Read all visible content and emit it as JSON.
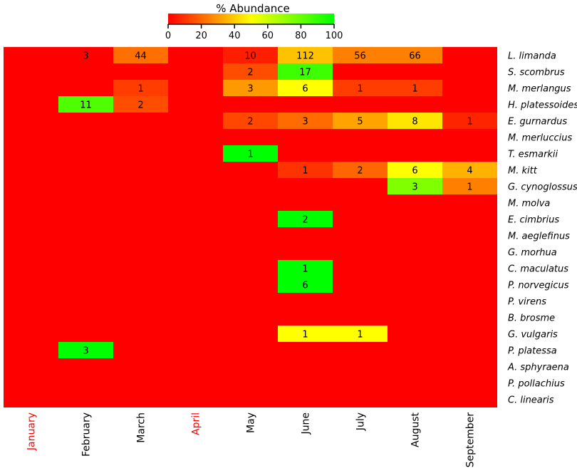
{
  "chart_data": {
    "type": "heatmap",
    "title": "% Abundance",
    "colorbar": {
      "range": [
        0,
        100
      ],
      "ticks": [
        0,
        20,
        40,
        60,
        80,
        100
      ],
      "colors": [
        "#ff0000",
        "#ffff00",
        "#00ff00"
      ]
    },
    "months": [
      "January",
      "February",
      "March",
      "April",
      "May",
      "June",
      "July",
      "August",
      "September"
    ],
    "highlighted_months": [
      "January",
      "April"
    ],
    "species": [
      "L. limanda",
      "S. scombrus",
      "M. merlangus",
      "H. platessoides",
      "E. gurnardus",
      "M. merluccius",
      "T. esmarkii",
      "M. kitt",
      "G. cynoglossus",
      "M. molva",
      "E. cimbrius",
      "M. aeglefinus",
      "G. morhua",
      "C. maculatus",
      "P. norvegicus",
      "P. virens",
      "B. brosme",
      "G. vulgaris",
      "P. platessa",
      "A. sphyraena",
      "P. pollachius",
      "C. linearis"
    ],
    "cells": [
      {
        "species": "L. limanda",
        "month": "February",
        "label": "3",
        "pct": 0
      },
      {
        "species": "L. limanda",
        "month": "March",
        "label": "44",
        "pct": 22
      },
      {
        "species": "L. limanda",
        "month": "May",
        "label": "10",
        "pct": 6
      },
      {
        "species": "L. limanda",
        "month": "June",
        "label": "112",
        "pct": 38
      },
      {
        "species": "L. limanda",
        "month": "July",
        "label": "56",
        "pct": 25
      },
      {
        "species": "L. limanda",
        "month": "August",
        "label": "66",
        "pct": 25
      },
      {
        "species": "S. scombrus",
        "month": "May",
        "label": "2",
        "pct": 15
      },
      {
        "species": "S. scombrus",
        "month": "June",
        "label": "17",
        "pct": 88
      },
      {
        "species": "M. merlangus",
        "month": "March",
        "label": "1",
        "pct": 12
      },
      {
        "species": "M. merlangus",
        "month": "May",
        "label": "3",
        "pct": 30
      },
      {
        "species": "M. merlangus",
        "month": "June",
        "label": "6",
        "pct": 50
      },
      {
        "species": "M. merlangus",
        "month": "July",
        "label": "1",
        "pct": 12
      },
      {
        "species": "M. merlangus",
        "month": "August",
        "label": "1",
        "pct": 12
      },
      {
        "species": "H. platessoides",
        "month": "February",
        "label": "11",
        "pct": 85
      },
      {
        "species": "H. platessoides",
        "month": "March",
        "label": "2",
        "pct": 15
      },
      {
        "species": "E. gurnardus",
        "month": "May",
        "label": "2",
        "pct": 14
      },
      {
        "species": "E. gurnardus",
        "month": "June",
        "label": "3",
        "pct": 21
      },
      {
        "species": "E. gurnardus",
        "month": "July",
        "label": "5",
        "pct": 32
      },
      {
        "species": "E. gurnardus",
        "month": "August",
        "label": "8",
        "pct": 45
      },
      {
        "species": "E. gurnardus",
        "month": "September",
        "label": "1",
        "pct": 7
      },
      {
        "species": "T. esmarkii",
        "month": "May",
        "label": "1",
        "pct": 100
      },
      {
        "species": "M. kitt",
        "month": "June",
        "label": "1",
        "pct": 10
      },
      {
        "species": "M. kitt",
        "month": "July",
        "label": "2",
        "pct": 20
      },
      {
        "species": "M. kitt",
        "month": "August",
        "label": "6",
        "pct": 50
      },
      {
        "species": "M. kitt",
        "month": "September",
        "label": "4",
        "pct": 35
      },
      {
        "species": "G. cynoglossus",
        "month": "August",
        "label": "3",
        "pct": 75
      },
      {
        "species": "G. cynoglossus",
        "month": "September",
        "label": "1",
        "pct": 25
      },
      {
        "species": "E. cimbrius",
        "month": "June",
        "label": "2",
        "pct": 100
      },
      {
        "species": "C. maculatus",
        "month": "June",
        "label": "1",
        "pct": 100
      },
      {
        "species": "P. norvegicus",
        "month": "June",
        "label": "6",
        "pct": 100
      },
      {
        "species": "G. vulgaris",
        "month": "June",
        "label": "1",
        "pct": 50
      },
      {
        "species": "G. vulgaris",
        "month": "July",
        "label": "1",
        "pct": 50
      },
      {
        "species": "P. platessa",
        "month": "February",
        "label": "3",
        "pct": 100
      }
    ],
    "colors": {
      "month_label": "#000000",
      "highlighted_month_label": "#ff0000"
    }
  }
}
